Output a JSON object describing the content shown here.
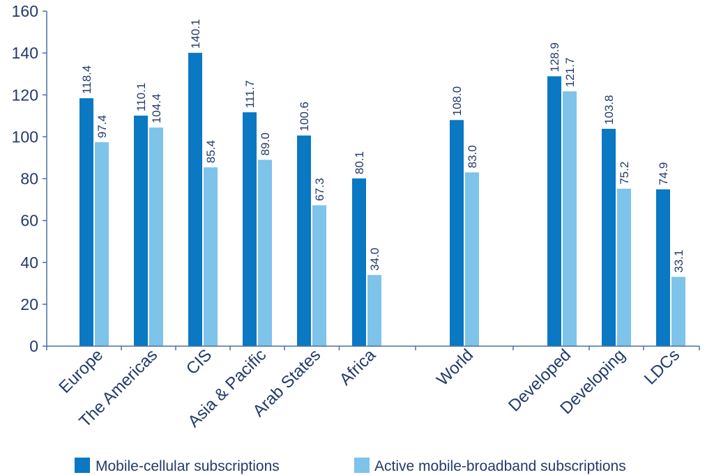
{
  "chart_data": {
    "type": "bar",
    "categories": [
      "Europe",
      "The Americas",
      "CIS",
      "Asia & Pacific",
      "Arab States",
      "Africa",
      "World",
      "Developed",
      "Developing",
      "LDCs"
    ],
    "series": [
      {
        "name": "Mobile-cellular subscriptions",
        "color": "#0a78c2",
        "values": [
          118.4,
          110.1,
          140.1,
          111.7,
          100.6,
          80.1,
          108.0,
          128.9,
          103.8,
          74.9
        ]
      },
      {
        "name": "Active mobile-broadband subscriptions",
        "color": "#7dc3ea",
        "values": [
          97.4,
          104.4,
          85.4,
          89.0,
          67.3,
          34.0,
          83.0,
          121.7,
          75.2,
          33.1
        ]
      }
    ],
    "data_labels": [
      [
        "118.4",
        "110.1",
        "140.1",
        "111.7",
        "100.6",
        "80.1",
        "108.0",
        "128.9",
        "103.8",
        "74.9"
      ],
      [
        "97.4",
        "104.4",
        "85.4",
        "89.0",
        "67.3",
        "34.0",
        "83.0",
        "121.7",
        "75.2",
        "33.1"
      ]
    ],
    "yticks": [
      "0",
      "20",
      "40",
      "60",
      "80",
      "100",
      "120",
      "140",
      "160"
    ],
    "ylim": [
      0,
      160
    ],
    "title": "",
    "xlabel": "",
    "ylabel": "",
    "grid": false,
    "legend_position": "bottom",
    "axis_color": "#4a6fa5",
    "text_color": "#233a6b"
  }
}
